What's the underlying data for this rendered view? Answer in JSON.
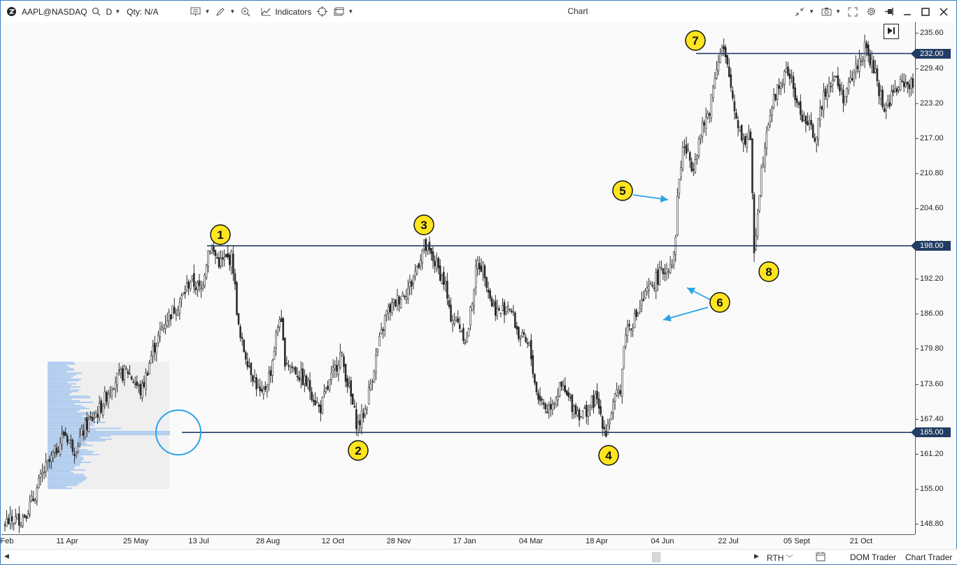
{
  "app": {
    "symbol": "AAPL@NASDAQ",
    "timeframe": "D",
    "qty_label": "Qty: N/A",
    "indicators_label": "Indicators",
    "window_title": "Chart"
  },
  "status_bar": {
    "session": "RTH",
    "dom_trader": "DOM Trader",
    "chart_trader": "Chart Trader"
  },
  "icons": [
    "logo-icon",
    "search-icon",
    "list-icon",
    "pencil-icon",
    "zoom-icon",
    "indicators-icon",
    "crosshair-icon",
    "window-icon",
    "minimize-arrows-icon",
    "camera-icon",
    "fullscreen-icon",
    "gear-icon",
    "pin-icon",
    "minimize-icon",
    "maximize-icon",
    "close-icon",
    "scroll-left-icon",
    "scroll-right-icon",
    "calendar-icon",
    "jump-to-end-icon"
  ],
  "colors": {
    "candle": "#2b2b2b",
    "level_line": "#223d63",
    "volume_profile": "#a9c8ef",
    "marker_fill": "#ffe51f",
    "arrow": "#29a3e6"
  },
  "chart_data": {
    "type": "candlestick",
    "instrument": "AAPL@NASDAQ",
    "timeframe": "D",
    "y_ticks": [
      235.6,
      229.4,
      223.2,
      217.0,
      210.8,
      204.6,
      198.4,
      192.2,
      186.0,
      179.8,
      173.6,
      167.4,
      161.2,
      155.0,
      148.8
    ],
    "y_tick_labels": [
      "235.60",
      "229.40",
      "223.20",
      "217.00",
      "210.80",
      "204.60",
      "198.40",
      "192.20",
      "186.00",
      "179.80",
      "173.60",
      "167.40",
      "161.20",
      "155.00",
      "148.80"
    ],
    "x_tick_labels": [
      "Feb",
      "11 Apr",
      "25 May",
      "13 Jul",
      "28 Aug",
      "12 Oct",
      "28 Nov",
      "17 Jan",
      "04 Mar",
      "18 Apr",
      "04 Jun",
      "22 Jul",
      "05 Sept",
      "21 Oct"
    ],
    "ylim": [
      147.0,
      237.5
    ],
    "price_levels": [
      {
        "label": "232.00",
        "value": 232.0
      },
      {
        "label": "198.00",
        "value": 198.0
      },
      {
        "label": "165.00",
        "value": 165.0
      }
    ],
    "swing_points": [
      {
        "label": "1",
        "x": 297,
        "y": 198.5
      },
      {
        "label": "2",
        "x": 509,
        "y": 165.5
      },
      {
        "label": "3",
        "x": 604,
        "y": 199.6
      },
      {
        "label": "4",
        "x": 864,
        "y": 165.0
      },
      {
        "label": "5",
        "x": 967,
        "y": 207.0
      },
      {
        "label": "6",
        "x": 960,
        "y": 190.0
      },
      {
        "label": "7",
        "x": 1031,
        "y": 236.0
      },
      {
        "label": "8",
        "x": 1076,
        "y": 196.0
      }
    ],
    "close_path": [
      [
        5,
        149
      ],
      [
        30,
        150
      ],
      [
        45,
        153
      ],
      [
        60,
        158
      ],
      [
        75,
        161
      ],
      [
        90,
        165
      ],
      [
        105,
        162
      ],
      [
        120,
        166
      ],
      [
        140,
        169
      ],
      [
        160,
        174
      ],
      [
        180,
        176
      ],
      [
        200,
        172
      ],
      [
        215,
        179
      ],
      [
        235,
        185
      ],
      [
        255,
        188
      ],
      [
        270,
        192
      ],
      [
        285,
        190
      ],
      [
        297,
        198
      ],
      [
        312,
        195
      ],
      [
        330,
        196
      ],
      [
        340,
        182
      ],
      [
        360,
        175
      ],
      [
        372,
        171
      ],
      [
        385,
        176
      ],
      [
        398,
        186
      ],
      [
        405,
        178
      ],
      [
        420,
        176
      ],
      [
        440,
        173
      ],
      [
        455,
        169
      ],
      [
        470,
        174
      ],
      [
        485,
        179
      ],
      [
        500,
        171
      ],
      [
        509,
        166
      ],
      [
        520,
        169
      ],
      [
        535,
        178
      ],
      [
        550,
        186
      ],
      [
        570,
        189
      ],
      [
        585,
        191
      ],
      [
        604,
        198
      ],
      [
        620,
        195
      ],
      [
        635,
        191
      ],
      [
        640,
        186
      ],
      [
        655,
        184
      ],
      [
        665,
        181
      ],
      [
        680,
        195
      ],
      [
        690,
        194
      ],
      [
        700,
        188
      ],
      [
        712,
        186
      ],
      [
        725,
        188
      ],
      [
        740,
        182
      ],
      [
        755,
        180
      ],
      [
        765,
        172
      ],
      [
        780,
        169
      ],
      [
        800,
        173
      ],
      [
        815,
        170
      ],
      [
        830,
        168
      ],
      [
        850,
        171
      ],
      [
        864,
        165
      ],
      [
        875,
        170
      ],
      [
        885,
        173
      ],
      [
        892,
        183
      ],
      [
        905,
        185
      ],
      [
        920,
        189
      ],
      [
        935,
        192
      ],
      [
        950,
        194
      ],
      [
        962,
        196
      ],
      [
        967,
        208
      ],
      [
        975,
        216
      ],
      [
        988,
        212
      ],
      [
        1000,
        218
      ],
      [
        1012,
        222
      ],
      [
        1022,
        230
      ],
      [
        1031,
        233
      ],
      [
        1040,
        228
      ],
      [
        1050,
        221
      ],
      [
        1062,
        216
      ],
      [
        1070,
        219
      ],
      [
        1076,
        197
      ],
      [
        1085,
        210
      ],
      [
        1095,
        220
      ],
      [
        1110,
        226
      ],
      [
        1125,
        229
      ],
      [
        1140,
        222
      ],
      [
        1155,
        219
      ],
      [
        1165,
        217
      ],
      [
        1175,
        225
      ],
      [
        1190,
        228
      ],
      [
        1205,
        224
      ],
      [
        1220,
        229
      ],
      [
        1235,
        233
      ],
      [
        1250,
        228
      ],
      [
        1262,
        222
      ],
      [
        1275,
        225
      ],
      [
        1290,
        227
      ],
      [
        1304,
        226
      ]
    ],
    "volume_profile": {
      "price_range": [
        155.0,
        177.5
      ],
      "peak_price": 165.0
    }
  }
}
